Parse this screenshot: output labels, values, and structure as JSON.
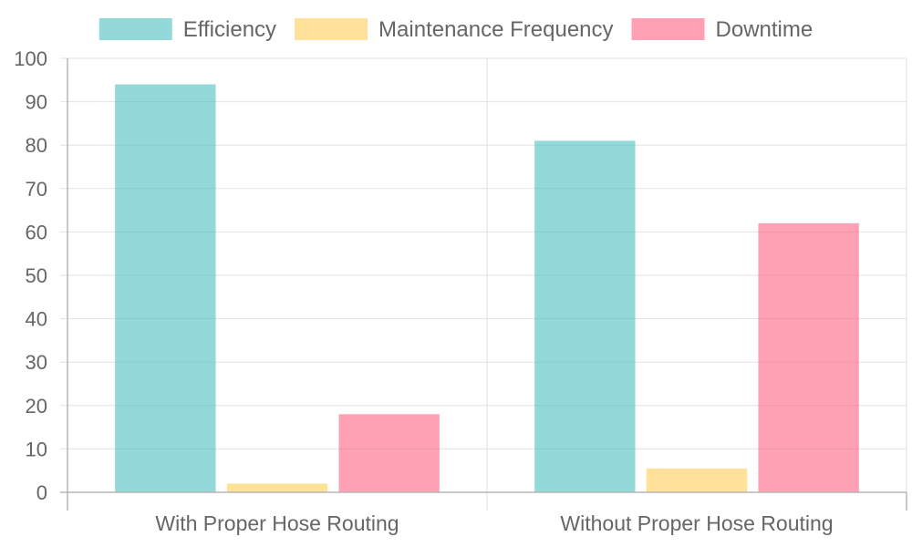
{
  "chart_data": {
    "type": "bar",
    "categories": [
      "With Proper Hose Routing",
      "Without Proper Hose Routing"
    ],
    "series": [
      {
        "name": "Efficiency",
        "values": [
          94,
          81
        ],
        "color": "#4bc0c0"
      },
      {
        "name": "Maintenance Frequency",
        "values": [
          2,
          5.5
        ],
        "color": "#ffcd56"
      },
      {
        "name": "Downtime",
        "values": [
          18,
          62
        ],
        "color": "#ff6384"
      }
    ],
    "title": "",
    "xlabel": "",
    "ylabel": "",
    "ylim": [
      0,
      100
    ],
    "yticks": [
      0,
      10,
      20,
      30,
      40,
      50,
      60,
      70,
      80,
      90,
      100
    ],
    "grid": true,
    "legend_position": "top"
  }
}
